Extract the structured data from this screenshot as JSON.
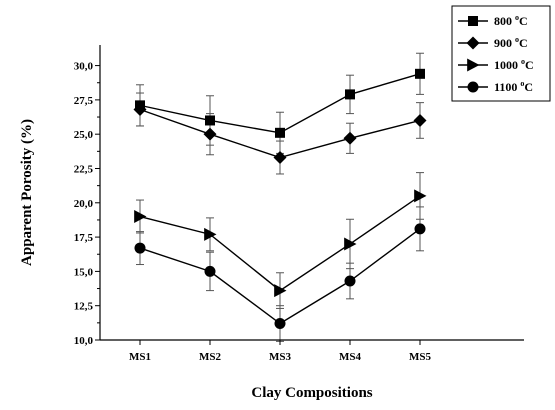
{
  "chart_data": {
    "type": "line",
    "xlabel": "Clay Compositions",
    "ylabel": "Apparent Porosity (%)",
    "categories": [
      "MS1",
      "MS2",
      "MS3",
      "MS4",
      "MS5"
    ],
    "y_ticks": [
      "10,0",
      "12,5",
      "15,0",
      "17,5",
      "20,0",
      "22,5",
      "25,0",
      "27,5",
      "30,0"
    ],
    "ylim": [
      10,
      31.5
    ],
    "grid": false,
    "legend_position": "top-right",
    "series": [
      {
        "name_main": "800 ",
        "name_sup": "o",
        "name_unit": "C",
        "marker": "square",
        "values": [
          27.1,
          26.0,
          25.1,
          27.9,
          29.4
        ],
        "errors": [
          1.5,
          1.8,
          1.5,
          1.4,
          1.5
        ]
      },
      {
        "name_main": "900 ",
        "name_sup": "o",
        "name_unit": "C",
        "marker": "diamond",
        "values": [
          26.8,
          25.0,
          23.3,
          24.7,
          26.0
        ],
        "errors": [
          1.2,
          1.5,
          1.2,
          1.1,
          1.3
        ]
      },
      {
        "name_main": "1000 ",
        "name_sup": "o",
        "name_unit": "C",
        "marker": "triangle-right",
        "values": [
          19.0,
          17.7,
          13.6,
          17.0,
          20.5
        ],
        "errors": [
          1.2,
          1.2,
          1.3,
          1.8,
          1.7
        ]
      },
      {
        "name_main": "1100 ",
        "name_sup": "o",
        "name_unit": "C",
        "marker": "circle",
        "values": [
          16.7,
          15.0,
          11.2,
          14.3,
          18.1
        ],
        "errors": [
          1.2,
          1.4,
          1.3,
          1.3,
          1.6
        ]
      }
    ]
  }
}
